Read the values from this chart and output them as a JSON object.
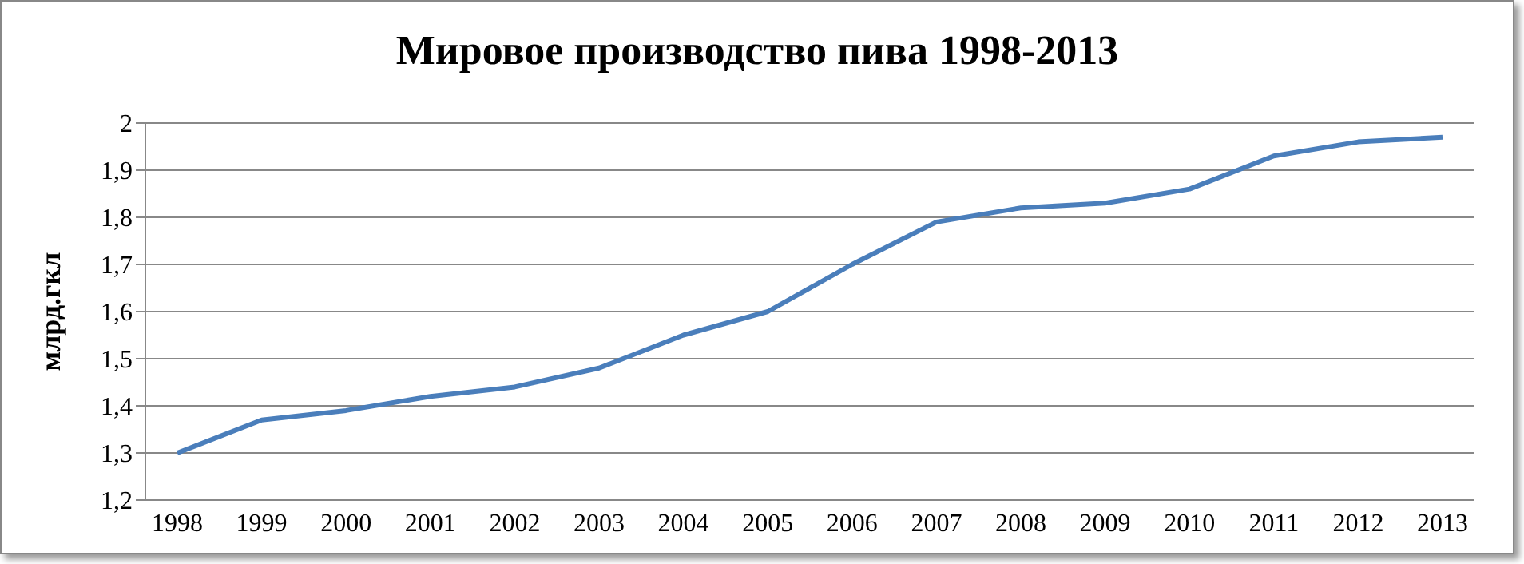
{
  "chart_data": {
    "type": "line",
    "title": "Мировое производство пива 1998-2013",
    "ylabel": "млрд.гкл",
    "categories": [
      "1998",
      "1999",
      "2000",
      "2001",
      "2002",
      "2003",
      "2004",
      "2005",
      "2006",
      "2007",
      "2008",
      "2009",
      "2010",
      "2011",
      "2012",
      "2013"
    ],
    "series": [
      {
        "color": "#4a7ebb",
        "values": [
          1.3,
          1.37,
          1.39,
          1.42,
          1.44,
          1.48,
          1.55,
          1.6,
          1.7,
          1.79,
          1.82,
          1.83,
          1.86,
          1.93,
          1.96,
          1.97
        ]
      }
    ],
    "ylim": [
      1.2,
      2
    ],
    "yticks": [
      {
        "value": 1.2,
        "label": "1,2"
      },
      {
        "value": 1.3,
        "label": "1,3"
      },
      {
        "value": 1.4,
        "label": "1,4"
      },
      {
        "value": 1.5,
        "label": "1,5"
      },
      {
        "value": 1.6,
        "label": "1,6"
      },
      {
        "value": 1.7,
        "label": "1,7"
      },
      {
        "value": 1.8,
        "label": "1,8"
      },
      {
        "value": 1.9,
        "label": "1,9"
      },
      {
        "value": 2,
        "label": "2"
      }
    ],
    "grid": "y",
    "legend": false,
    "marker": "none",
    "line_style": "solid"
  }
}
